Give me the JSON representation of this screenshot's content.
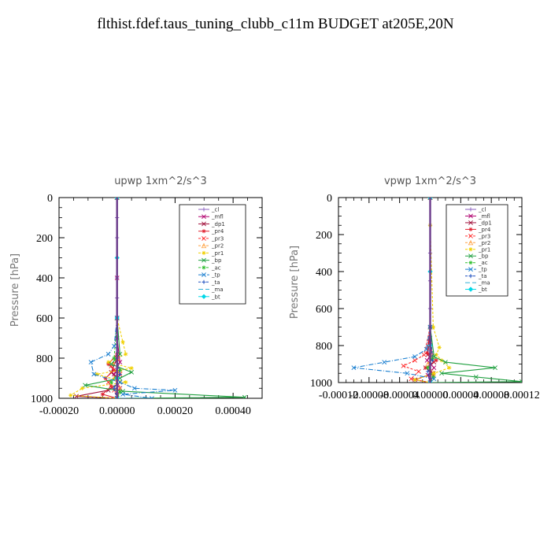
{
  "page": {
    "title": "flthist.fdef.taus_tuning_clubb_c11m  BUDGET at205E,20N"
  },
  "chart_data": [
    {
      "type": "line",
      "title": "upwp   1xm^2/s^3",
      "xlabel": "",
      "ylabel": "Pressure [hPa]",
      "xlim": [
        -0.0002,
        0.0005
      ],
      "ylim": [
        1000,
        0
      ],
      "xticks": [
        "-0.00020",
        "0.00000",
        "0.00020",
        "0.00040"
      ],
      "xtick_values": [
        -0.0002,
        0.0,
        0.0002,
        0.0004
      ],
      "yticks": [
        "0",
        "200",
        "400",
        "600",
        "800",
        "1000"
      ],
      "ytick_values": [
        0,
        200,
        400,
        600,
        800,
        1000
      ],
      "legend_position": "top-right",
      "series": [
        {
          "name": "_cl",
          "color": "#8b5fbf",
          "marker": "+",
          "dash": "",
          "x": [
            0,
            0,
            0,
            0,
            0,
            0,
            0,
            0,
            0,
            0
          ],
          "y": [
            0,
            100,
            200,
            300,
            400,
            500,
            600,
            700,
            850,
            1000
          ]
        },
        {
          "name": "_mfl",
          "color": "#b0006e",
          "marker": "x",
          "dash": "",
          "x": [
            0,
            0,
            0,
            1e-05,
            -1e-05,
            1e-05,
            0
          ],
          "y": [
            0,
            400,
            700,
            820,
            880,
            950,
            1000
          ]
        },
        {
          "name": "_dp1",
          "color": "#a0103a",
          "marker": "x",
          "dash": "",
          "x": [
            0,
            0,
            0,
            -2e-05,
            1e-05,
            -3e-05,
            -0.00014,
            0
          ],
          "y": [
            0,
            600,
            800,
            870,
            920,
            960,
            990,
            1000
          ]
        },
        {
          "name": "_pr4",
          "color": "#e0202f",
          "marker": "*",
          "dash": "",
          "x": [
            0,
            0,
            0,
            -3e-05,
            -1e-05,
            -4e-05,
            -2e-05,
            -5e-05,
            0
          ],
          "y": [
            0,
            600,
            780,
            830,
            860,
            900,
            940,
            980,
            1000
          ]
        },
        {
          "name": "_pr3",
          "color": "#ff3030",
          "marker": "x",
          "dash": "3,2",
          "x": [
            0,
            0,
            0,
            -2e-05,
            1e-05,
            -3e-05,
            -1e-05,
            0
          ],
          "y": [
            0,
            600,
            800,
            840,
            880,
            920,
            960,
            1000
          ]
        },
        {
          "name": "_pr2",
          "color": "#ffa040",
          "marker": "^",
          "dash": "3,2",
          "x": [
            0,
            0,
            0,
            1e-05,
            -1e-05,
            1e-05,
            0
          ],
          "y": [
            0,
            600,
            800,
            860,
            900,
            950,
            1000
          ]
        },
        {
          "name": "_pr1",
          "color": "#f0d000",
          "marker": "*",
          "dash": "3,2",
          "x": [
            0,
            0,
            2e-05,
            3e-05,
            -3e-05,
            5e-05,
            -7e-05,
            3e-05,
            -0.00012,
            -0.00016,
            0
          ],
          "y": [
            0,
            600,
            720,
            780,
            820,
            850,
            880,
            920,
            950,
            985,
            1000
          ]
        },
        {
          "name": "_bp",
          "color": "#20a040",
          "marker": "x",
          "dash": "",
          "x": [
            0,
            0,
            1e-05,
            -2e-05,
            5e-05,
            1e-05,
            -0.00011,
            2e-05,
            0.00044,
            0
          ],
          "y": [
            0,
            600,
            780,
            830,
            870,
            900,
            935,
            965,
            995,
            1000
          ]
        },
        {
          "name": "_ac",
          "color": "#30c030",
          "marker": "*",
          "dash": "3,2",
          "x": [
            0,
            0,
            -1e-05,
            1e-05,
            -2e-05,
            1e-05,
            0
          ],
          "y": [
            0,
            600,
            800,
            860,
            920,
            970,
            1000
          ]
        },
        {
          "name": "_tp",
          "color": "#1a7fd0",
          "marker": "x",
          "dash": "6,2,1,2",
          "x": [
            0,
            0,
            -1e-05,
            -3e-05,
            -9e-05,
            -8e-05,
            1e-05,
            6e-05,
            0.0002,
            2e-05,
            0.00012,
            0
          ],
          "y": [
            0,
            600,
            740,
            780,
            820,
            880,
            920,
            950,
            960,
            980,
            1000,
            1000
          ]
        },
        {
          "name": "_ta",
          "color": "#2050c0",
          "marker": "+",
          "dash": "3,2",
          "x": [
            0,
            0,
            0,
            1e-05,
            -1e-05,
            0
          ],
          "y": [
            0,
            600,
            800,
            880,
            950,
            1000
          ]
        },
        {
          "name": "_ma",
          "color": "#30b0d8",
          "marker": "",
          "dash": "6,3",
          "x": [
            0,
            0,
            0,
            0,
            0
          ],
          "y": [
            0,
            400,
            800,
            950,
            1000
          ]
        },
        {
          "name": "_bt",
          "color": "#00d8e8",
          "marker": "diamond",
          "dash": "",
          "x": [
            0,
            0,
            0,
            0,
            0
          ],
          "y": [
            0,
            300,
            600,
            900,
            1000
          ]
        }
      ]
    },
    {
      "type": "line",
      "title": "vpwp   1xm^2/s^3",
      "xlabel": "",
      "ylabel": "Pressure [hPa]",
      "xlim": [
        -0.00012,
        0.00012
      ],
      "ylim": [
        1000,
        0
      ],
      "xticks": [
        "-0.00012",
        "-0.00008",
        "-0.00004",
        "0.00000",
        "0.00004",
        "0.00008",
        "0.00012"
      ],
      "xtick_values": [
        -0.00012,
        -8e-05,
        -4e-05,
        0.0,
        4e-05,
        8e-05,
        0.00012
      ],
      "yticks": [
        "0",
        "200",
        "400",
        "600",
        "800",
        "1000"
      ],
      "ytick_values": [
        0,
        200,
        400,
        600,
        800,
        1000
      ],
      "legend_position": "top-right",
      "series": [
        {
          "name": "_cl",
          "color": "#8b5fbf",
          "marker": "+",
          "dash": "",
          "x": [
            0,
            0,
            0,
            0,
            0,
            0,
            0,
            0
          ],
          "y": [
            0,
            150,
            300,
            450,
            600,
            750,
            900,
            1000
          ]
        },
        {
          "name": "_mfl",
          "color": "#b0006e",
          "marker": "x",
          "dash": "",
          "x": [
            0,
            0,
            2e-06,
            -4e-06,
            5e-06,
            -3e-06,
            0
          ],
          "y": [
            0,
            700,
            840,
            880,
            920,
            960,
            1000
          ]
        },
        {
          "name": "_dp1",
          "color": "#a0103a",
          "marker": "x",
          "dash": "",
          "x": [
            0,
            0,
            -3e-06,
            5e-06,
            -6e-06,
            4e-06,
            -2e-05,
            0
          ],
          "y": [
            0,
            700,
            850,
            890,
            920,
            950,
            985,
            1000
          ]
        },
        {
          "name": "_pr4",
          "color": "#e0202f",
          "marker": "*",
          "dash": "",
          "x": [
            0,
            0,
            -4e-06,
            8e-06,
            -6e-06,
            4e-06,
            0
          ],
          "y": [
            0,
            700,
            840,
            880,
            920,
            960,
            1000
          ]
        },
        {
          "name": "_pr3",
          "color": "#ff3030",
          "marker": "x",
          "dash": "3,2",
          "x": [
            0,
            0,
            -8e-06,
            -2e-05,
            -3.5e-05,
            -1.5e-05,
            -2.5e-05,
            0
          ],
          "y": [
            0,
            700,
            850,
            880,
            910,
            940,
            980,
            1000
          ]
        },
        {
          "name": "_pr2",
          "color": "#ffa040",
          "marker": "^",
          "dash": "3,2",
          "x": [
            0,
            0,
            2e-06,
            -3e-06,
            4e-06,
            0
          ],
          "y": [
            0,
            700,
            860,
            900,
            950,
            1000
          ]
        },
        {
          "name": "_pr1",
          "color": "#f0d000",
          "marker": "*",
          "dash": "3,2",
          "x": [
            0,
            0,
            4e-06,
            1.2e-05,
            8e-06,
            1.5e-05,
            2.5e-05,
            5e-06,
            -2e-05,
            0
          ],
          "y": [
            0,
            150,
            700,
            810,
            850,
            880,
            920,
            950,
            985,
            1000
          ]
        },
        {
          "name": "_bp",
          "color": "#20a040",
          "marker": "x",
          "dash": "",
          "x": [
            0,
            0,
            5e-06,
            2e-05,
            8.5e-05,
            1.5e-05,
            6e-05,
            0.00012,
            0
          ],
          "y": [
            0,
            700,
            860,
            890,
            920,
            950,
            970,
            995,
            1000
          ]
        },
        {
          "name": "_ac",
          "color": "#30c030",
          "marker": "*",
          "dash": "3,2",
          "x": [
            0,
            0,
            3e-06,
            -3e-06,
            4e-06,
            0
          ],
          "y": [
            0,
            700,
            870,
            920,
            970,
            1000
          ]
        },
        {
          "name": "_tp",
          "color": "#1a7fd0",
          "marker": "x",
          "dash": "6,2,1,2",
          "x": [
            0,
            0,
            -5e-06,
            -2e-05,
            -6e-05,
            -0.0001,
            -3e-05,
            5e-06,
            0
          ],
          "y": [
            0,
            700,
            820,
            860,
            890,
            920,
            950,
            980,
            1000
          ]
        },
        {
          "name": "_ta",
          "color": "#2050c0",
          "marker": "+",
          "dash": "3,2",
          "x": [
            0,
            0,
            3e-06,
            -3e-06,
            0
          ],
          "y": [
            0,
            700,
            880,
            940,
            1000
          ]
        },
        {
          "name": "_ma",
          "color": "#30b0d8",
          "marker": "",
          "dash": "6,3",
          "x": [
            0,
            0,
            0,
            0
          ],
          "y": [
            0,
            500,
            900,
            1000
          ]
        },
        {
          "name": "_bt",
          "color": "#00d8e8",
          "marker": "diamond",
          "dash": "",
          "x": [
            0,
            0,
            0,
            0
          ],
          "y": [
            0,
            400,
            800,
            1000
          ]
        }
      ]
    }
  ]
}
